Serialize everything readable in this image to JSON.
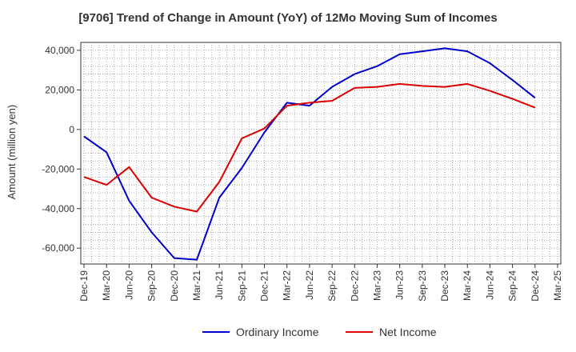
{
  "chart_data": {
    "type": "line",
    "title": "[9706]  Trend of Change in Amount (YoY) of 12Mo Moving Sum of Incomes",
    "xlabel": "",
    "ylabel": "Amount (million yen)",
    "ylim": [
      -68000,
      44000
    ],
    "yticks": [
      40000,
      20000,
      0,
      -20000,
      -40000,
      -60000
    ],
    "ytick_labels": [
      "40,000",
      "20,000",
      "0",
      "-20,000",
      "-40,000",
      "-60,000"
    ],
    "categories": [
      "Dec-19",
      "Mar-20",
      "Jun-20",
      "Sep-20",
      "Dec-20",
      "Mar-21",
      "Jun-21",
      "Sep-21",
      "Dec-21",
      "Mar-22",
      "Jun-22",
      "Sep-22",
      "Dec-22",
      "Mar-23",
      "Jun-23",
      "Sep-23",
      "Dec-23",
      "Mar-24",
      "Jun-24",
      "Sep-24",
      "Dec-24",
      "Mar-25"
    ],
    "grid": true,
    "legend_position": "bottom",
    "series": [
      {
        "name": "Ordinary Income",
        "color": "#0000cc",
        "values": [
          -3500,
          -11500,
          -36000,
          -52000,
          -65000,
          -65800,
          -34500,
          -19500,
          -1500,
          13500,
          12000,
          21500,
          28000,
          32000,
          38000,
          39500,
          41000,
          39500,
          33500,
          25000,
          16000,
          null
        ]
      },
      {
        "name": "Net Income",
        "color": "#dd0000",
        "values": [
          -24000,
          -28000,
          -19000,
          -34500,
          -39000,
          -41500,
          -26500,
          -4500,
          500,
          12000,
          13500,
          14500,
          21000,
          21500,
          23000,
          22000,
          21500,
          23000,
          19500,
          15500,
          11000,
          null
        ]
      }
    ]
  }
}
